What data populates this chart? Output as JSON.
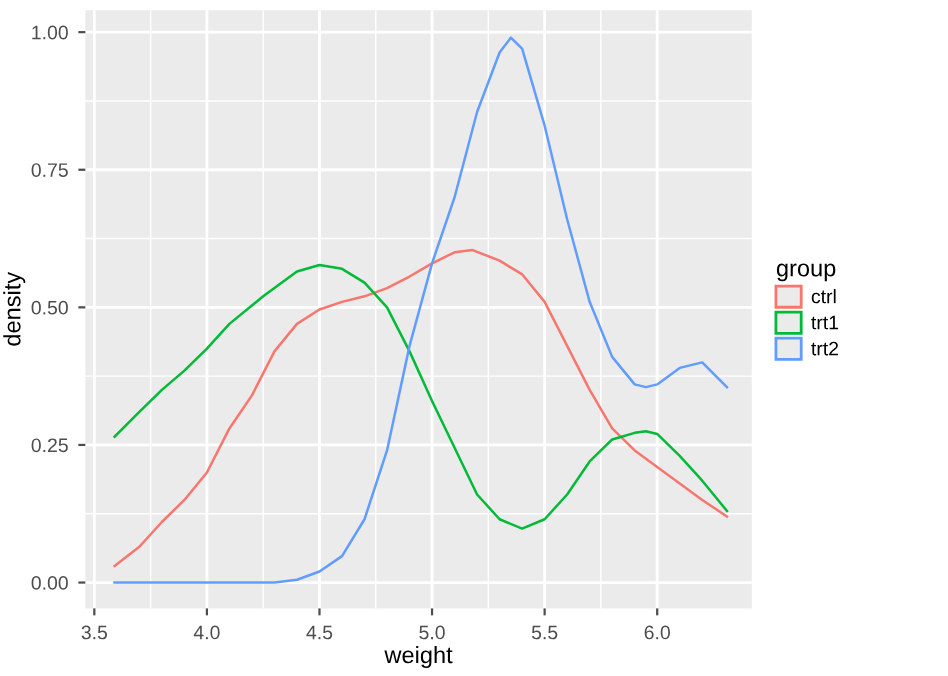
{
  "chart_data": {
    "type": "line",
    "xlabel": "weight",
    "ylabel": "density",
    "legend_title": "group",
    "legend": "right",
    "grid": true,
    "xlim": [
      3.46,
      6.42
    ],
    "ylim": [
      -0.047,
      1.04
    ],
    "xticks": [
      {
        "value": 3.5,
        "label": "3.5"
      },
      {
        "value": 4.0,
        "label": "4.0"
      },
      {
        "value": 4.5,
        "label": "4.5"
      },
      {
        "value": 5.0,
        "label": "5.0"
      },
      {
        "value": 5.5,
        "label": "5.5"
      },
      {
        "value": 6.0,
        "label": "6.0"
      }
    ],
    "yticks": [
      {
        "value": 0,
        "label": "0.00"
      },
      {
        "value": 0.25,
        "label": "0.25"
      },
      {
        "value": 0.5,
        "label": "0.50"
      },
      {
        "value": 0.75,
        "label": "0.75"
      },
      {
        "value": 1.0,
        "label": "1.00"
      }
    ],
    "series": [
      {
        "name": "ctrl",
        "color": "#f8766d",
        "x": [
          3.59,
          3.7,
          3.8,
          3.9,
          4.0,
          4.1,
          4.2,
          4.3,
          4.4,
          4.5,
          4.6,
          4.7,
          4.8,
          4.9,
          5.0,
          5.1,
          5.18,
          5.3,
          5.4,
          5.5,
          5.6,
          5.7,
          5.8,
          5.9,
          6.0,
          6.1,
          6.2,
          6.31
        ],
        "values": [
          0.03,
          0.065,
          0.11,
          0.15,
          0.2,
          0.28,
          0.34,
          0.42,
          0.47,
          0.496,
          0.51,
          0.52,
          0.535,
          0.556,
          0.58,
          0.6,
          0.604,
          0.585,
          0.56,
          0.51,
          0.43,
          0.35,
          0.28,
          0.24,
          0.21,
          0.18,
          0.15,
          0.12
        ]
      },
      {
        "name": "trt1",
        "color": "#00ba38",
        "x": [
          3.59,
          3.7,
          3.8,
          3.9,
          4.0,
          4.1,
          4.25,
          4.4,
          4.5,
          4.6,
          4.7,
          4.8,
          4.9,
          5.0,
          5.1,
          5.2,
          5.3,
          5.4,
          5.5,
          5.6,
          5.7,
          5.8,
          5.9,
          5.95,
          6.0,
          6.1,
          6.2,
          6.31
        ],
        "values": [
          0.265,
          0.31,
          0.35,
          0.385,
          0.425,
          0.47,
          0.52,
          0.565,
          0.577,
          0.57,
          0.545,
          0.5,
          0.42,
          0.33,
          0.245,
          0.16,
          0.115,
          0.098,
          0.115,
          0.16,
          0.22,
          0.26,
          0.272,
          0.275,
          0.27,
          0.23,
          0.185,
          0.13
        ]
      },
      {
        "name": "trt2",
        "color": "#619cff",
        "x": [
          3.59,
          4.0,
          4.3,
          4.4,
          4.5,
          4.6,
          4.7,
          4.8,
          4.9,
          5.0,
          5.1,
          5.2,
          5.3,
          5.35,
          5.4,
          5.5,
          5.6,
          5.7,
          5.8,
          5.9,
          5.95,
          6.0,
          6.1,
          6.2,
          6.31
        ],
        "values": [
          0.0,
          0.0,
          0.0,
          0.005,
          0.02,
          0.048,
          0.115,
          0.24,
          0.43,
          0.58,
          0.7,
          0.855,
          0.963,
          0.99,
          0.97,
          0.83,
          0.66,
          0.51,
          0.41,
          0.36,
          0.355,
          0.36,
          0.39,
          0.4,
          0.355
        ]
      }
    ]
  }
}
